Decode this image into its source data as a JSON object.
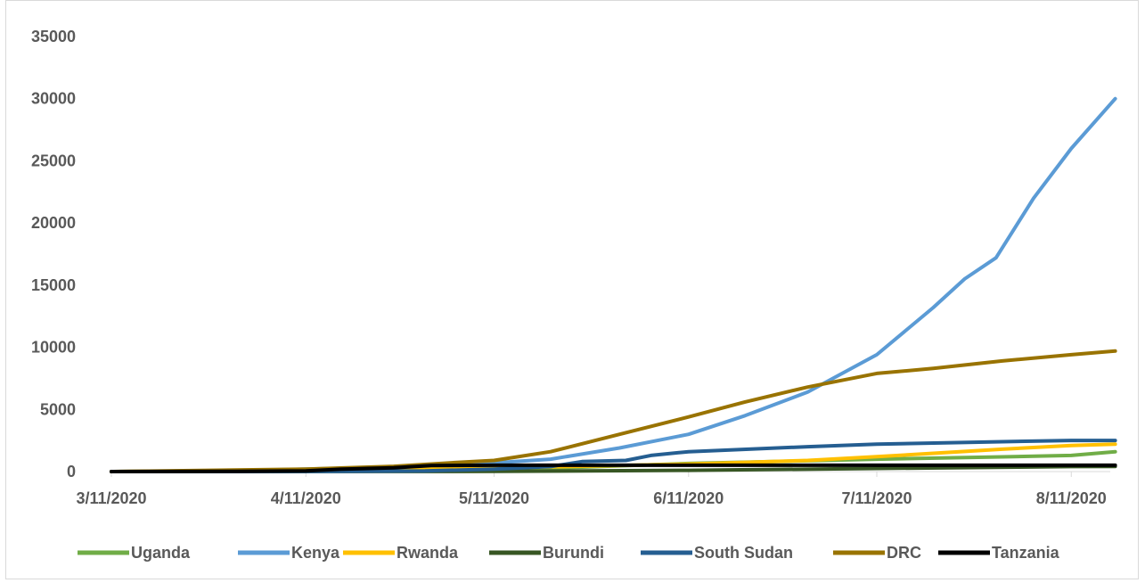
{
  "chart_data": {
    "type": "line",
    "title": "",
    "xlabel": "",
    "ylabel": "",
    "ylim": [
      0,
      35000
    ],
    "yticks": [
      0,
      5000,
      10000,
      15000,
      20000,
      25000,
      30000,
      35000
    ],
    "x_tick_labels": [
      "3/11/2020",
      "4/11/2020",
      "5/11/2020",
      "6/11/2020",
      "7/11/2020",
      "8/11/2020"
    ],
    "x_range": [
      "3/11/2020",
      "8/18/2020"
    ],
    "grid": false,
    "legend_position": "bottom",
    "series": [
      {
        "name": "Uganda",
        "color": "#70ad47",
        "points": [
          [
            "3/11/2020",
            0
          ],
          [
            "4/11/2020",
            50
          ],
          [
            "5/11/2020",
            120
          ],
          [
            "6/11/2020",
            650
          ],
          [
            "6/30/2020",
            870
          ],
          [
            "7/11/2020",
            1000
          ],
          [
            "7/31/2020",
            1180
          ],
          [
            "8/11/2020",
            1300
          ],
          [
            "8/18/2020",
            1600
          ]
        ]
      },
      {
        "name": "Kenya",
        "color": "#5b9bd5",
        "points": [
          [
            "3/11/2020",
            0
          ],
          [
            "4/1/2020",
            80
          ],
          [
            "4/11/2020",
            200
          ],
          [
            "4/25/2020",
            350
          ],
          [
            "5/11/2020",
            700
          ],
          [
            "5/20/2020",
            1000
          ],
          [
            "5/31/2020",
            1900
          ],
          [
            "6/11/2020",
            3000
          ],
          [
            "6/20/2020",
            4500
          ],
          [
            "6/30/2020",
            6400
          ],
          [
            "7/11/2020",
            9400
          ],
          [
            "7/20/2020",
            13200
          ],
          [
            "7/25/2020",
            15500
          ],
          [
            "7/30/2020",
            17200
          ],
          [
            "8/5/2020",
            22000
          ],
          [
            "8/11/2020",
            26000
          ],
          [
            "8/18/2020",
            30000
          ]
        ]
      },
      {
        "name": "Rwanda",
        "color": "#ffc000",
        "points": [
          [
            "3/11/2020",
            0
          ],
          [
            "4/11/2020",
            110
          ],
          [
            "5/11/2020",
            290
          ],
          [
            "6/11/2020",
            600
          ],
          [
            "6/30/2020",
            900
          ],
          [
            "7/11/2020",
            1200
          ],
          [
            "7/31/2020",
            1800
          ],
          [
            "8/11/2020",
            2100
          ],
          [
            "8/18/2020",
            2200
          ]
        ]
      },
      {
        "name": "Burundi",
        "color": "#375623",
        "points": [
          [
            "3/11/2020",
            0
          ],
          [
            "4/11/2020",
            5
          ],
          [
            "5/11/2020",
            15
          ],
          [
            "6/11/2020",
            100
          ],
          [
            "7/11/2020",
            250
          ],
          [
            "8/11/2020",
            400
          ],
          [
            "8/18/2020",
            410
          ]
        ]
      },
      {
        "name": "South Sudan",
        "color": "#255e91",
        "points": [
          [
            "3/11/2020",
            0
          ],
          [
            "4/11/2020",
            4
          ],
          [
            "4/30/2020",
            50
          ],
          [
            "5/11/2020",
            200
          ],
          [
            "5/20/2020",
            400
          ],
          [
            "5/25/2020",
            800
          ],
          [
            "6/1/2020",
            900
          ],
          [
            "6/5/2020",
            1300
          ],
          [
            "6/11/2020",
            1600
          ],
          [
            "6/30/2020",
            2000
          ],
          [
            "7/11/2020",
            2200
          ],
          [
            "7/31/2020",
            2400
          ],
          [
            "8/11/2020",
            2500
          ],
          [
            "8/18/2020",
            2500
          ]
        ]
      },
      {
        "name": "DRC",
        "color": "#997300",
        "points": [
          [
            "3/11/2020",
            0
          ],
          [
            "4/11/2020",
            200
          ],
          [
            "4/25/2020",
            420
          ],
          [
            "5/4/2020",
            700
          ],
          [
            "5/11/2020",
            900
          ],
          [
            "5/20/2020",
            1600
          ],
          [
            "5/31/2020",
            3000
          ],
          [
            "6/11/2020",
            4400
          ],
          [
            "6/20/2020",
            5600
          ],
          [
            "6/30/2020",
            6800
          ],
          [
            "7/11/2020",
            7900
          ],
          [
            "7/20/2020",
            8300
          ],
          [
            "7/31/2020",
            8900
          ],
          [
            "8/11/2020",
            9400
          ],
          [
            "8/18/2020",
            9700
          ]
        ]
      },
      {
        "name": "Tanzania",
        "color": "#000000",
        "points": [
          [
            "3/11/2020",
            0
          ],
          [
            "3/31/2020",
            20
          ],
          [
            "4/11/2020",
            50
          ],
          [
            "4/17/2020",
            200
          ],
          [
            "4/25/2020",
            300
          ],
          [
            "5/1/2020",
            480
          ],
          [
            "5/11/2020",
            509
          ],
          [
            "8/18/2020",
            509
          ]
        ]
      }
    ]
  }
}
